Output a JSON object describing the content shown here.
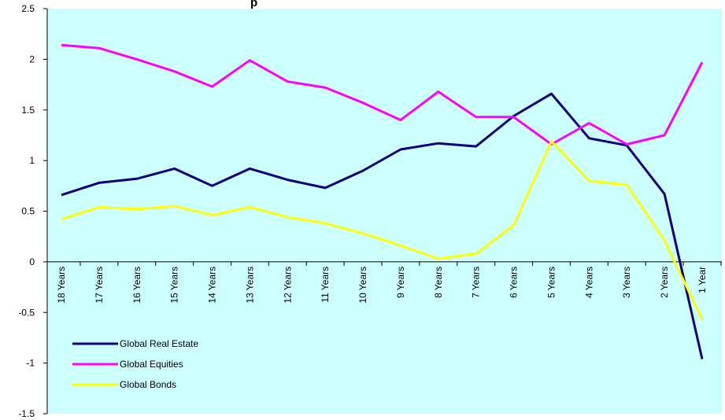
{
  "chart_data": {
    "type": "line",
    "title": "p",
    "categories": [
      "18 Years",
      "17 Years",
      "16 Years",
      "15 Years",
      "14 Years",
      "13 Years",
      "12 Years",
      "11 Years",
      "10 Years",
      "9 Years",
      "8 Years",
      "7 Years",
      "6 Years",
      "5 Years",
      "4 Years",
      "3 Years",
      "2 Years",
      "1 Year"
    ],
    "series": [
      {
        "name": "Global Real Estate",
        "color": "#000080",
        "values": [
          0.66,
          0.78,
          0.82,
          0.92,
          0.75,
          0.92,
          0.81,
          0.73,
          0.9,
          1.11,
          1.17,
          1.14,
          1.44,
          1.66,
          1.22,
          1.15,
          0.67,
          -0.96
        ]
      },
      {
        "name": "Global Equities",
        "color": "#FF00FF",
        "values": [
          2.14,
          2.11,
          2.0,
          1.88,
          1.73,
          1.99,
          1.78,
          1.72,
          1.57,
          1.4,
          1.68,
          1.43,
          1.43,
          1.16,
          1.37,
          1.16,
          1.25,
          1.97
        ]
      },
      {
        "name": "Global Bonds",
        "color": "#FFFF00",
        "values": [
          0.42,
          0.54,
          0.52,
          0.55,
          0.46,
          0.54,
          0.44,
          0.38,
          0.28,
          0.16,
          0.03,
          0.08,
          0.36,
          1.19,
          0.8,
          0.76,
          0.21,
          -0.57
        ]
      }
    ],
    "ylim": [
      -1.5,
      2.5
    ],
    "yticks": [
      "2.5",
      "2",
      "1.5",
      "1",
      "0.5",
      "0",
      "-0.5",
      "-1",
      "-1.5"
    ],
    "ytick_values": [
      2.5,
      2,
      1.5,
      1,
      0.5,
      0,
      -0.5,
      -1,
      -1.5
    ],
    "legend_position": "bottom-left",
    "plot_background": "#CCFFFF",
    "grid": false
  }
}
